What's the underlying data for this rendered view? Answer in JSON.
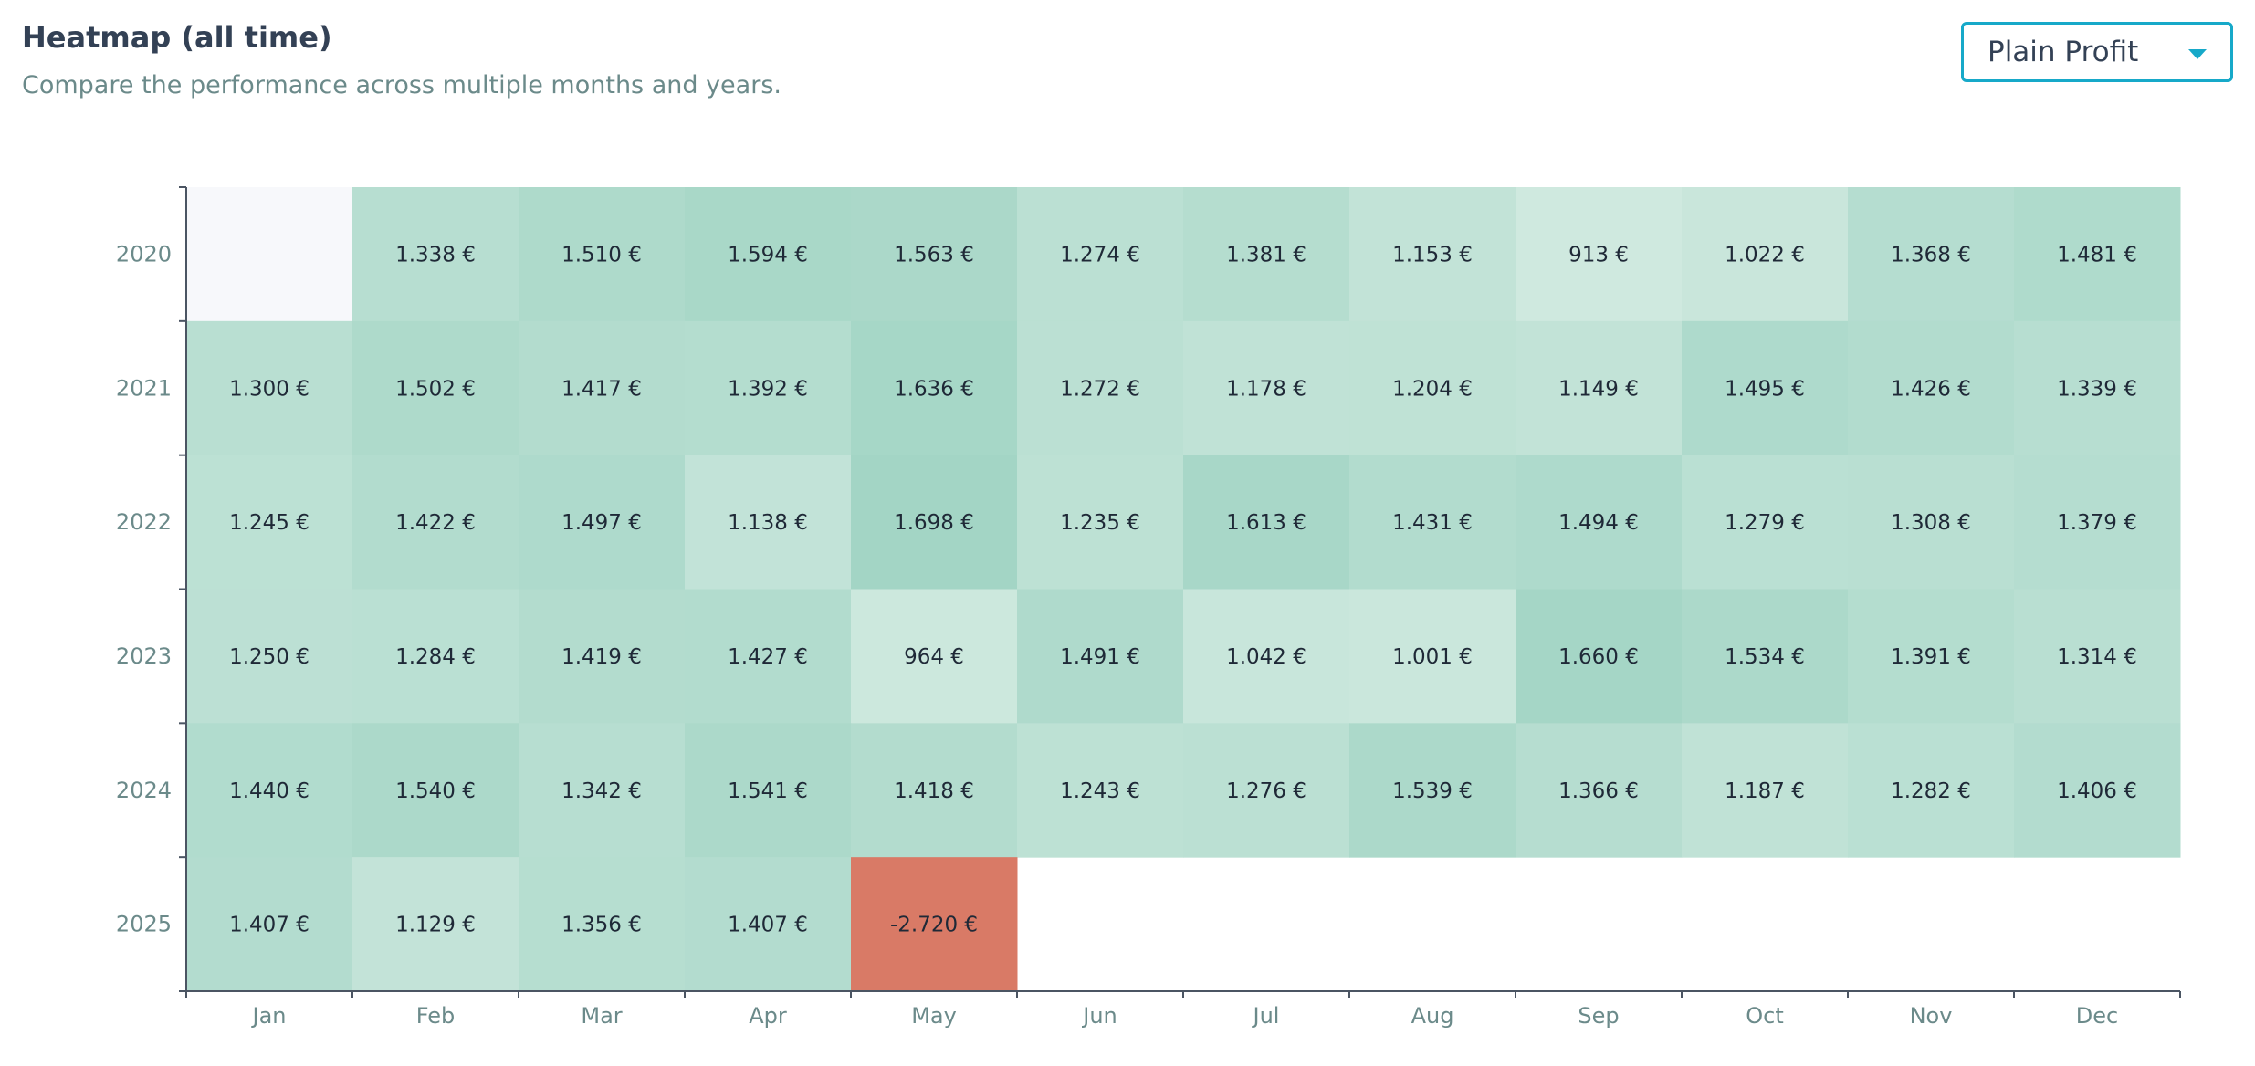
{
  "header": {
    "title": "Heatmap (all time)",
    "subtitle": "Compare the performance across multiple months and years."
  },
  "metric_select": {
    "value": "Plain Profit",
    "icon": "chevron-down-icon",
    "accent_color": "#17a9c9"
  },
  "colors": {
    "positive_low": "#cfe9df",
    "positive_high": "#a3d5c5",
    "negative": "#d97a66",
    "empty": "#f7f8fb"
  },
  "chart_data": {
    "type": "heatmap",
    "title": "Heatmap (all time)",
    "x": [
      "Jan",
      "Feb",
      "Mar",
      "Apr",
      "May",
      "Jun",
      "Jul",
      "Aug",
      "Sep",
      "Oct",
      "Nov",
      "Dec"
    ],
    "y": [
      "2020",
      "2021",
      "2022",
      "2023",
      "2024",
      "2025"
    ],
    "values": [
      [
        null,
        1338,
        1510,
        1594,
        1563,
        1274,
        1381,
        1153,
        913,
        1022,
        1368,
        1481
      ],
      [
        1300,
        1502,
        1417,
        1392,
        1636,
        1272,
        1178,
        1204,
        1149,
        1495,
        1426,
        1339
      ],
      [
        1245,
        1422,
        1497,
        1138,
        1698,
        1235,
        1613,
        1431,
        1494,
        1279,
        1308,
        1379
      ],
      [
        1250,
        1284,
        1419,
        1427,
        964,
        1491,
        1042,
        1001,
        1660,
        1534,
        1391,
        1314
      ],
      [
        1440,
        1540,
        1342,
        1541,
        1418,
        1243,
        1276,
        1539,
        1366,
        1187,
        1282,
        1406
      ],
      [
        1407,
        1129,
        1356,
        1407,
        -2720,
        null,
        null,
        null,
        null,
        null,
        null,
        null
      ]
    ],
    "labels": [
      [
        "",
        "1.338 €",
        "1.510 €",
        "1.594 €",
        "1.563 €",
        "1.274 €",
        "1.381 €",
        "1.153 €",
        "913 €",
        "1.022 €",
        "1.368 €",
        "1.481 €"
      ],
      [
        "1.300 €",
        "1.502 €",
        "1.417 €",
        "1.392 €",
        "1.636 €",
        "1.272 €",
        "1.178 €",
        "1.204 €",
        "1.149 €",
        "1.495 €",
        "1.426 €",
        "1.339 €"
      ],
      [
        "1.245 €",
        "1.422 €",
        "1.497 €",
        "1.138 €",
        "1.698 €",
        "1.235 €",
        "1.613 €",
        "1.431 €",
        "1.494 €",
        "1.279 €",
        "1.308 €",
        "1.379 €"
      ],
      [
        "1.250 €",
        "1.284 €",
        "1.419 €",
        "1.427 €",
        "964 €",
        "1.491 €",
        "1.042 €",
        "1.001 €",
        "1.660 €",
        "1.534 €",
        "1.391 €",
        "1.314 €"
      ],
      [
        "1.440 €",
        "1.540 €",
        "1.342 €",
        "1.541 €",
        "1.418 €",
        "1.243 €",
        "1.276 €",
        "1.539 €",
        "1.366 €",
        "1.187 €",
        "1.282 €",
        "1.406 €"
      ],
      [
        "1.407 €",
        "1.129 €",
        "1.356 €",
        "1.407 €",
        "-2.720 €",
        "",
        "",
        "",
        "",
        "",
        "",
        ""
      ]
    ]
  }
}
